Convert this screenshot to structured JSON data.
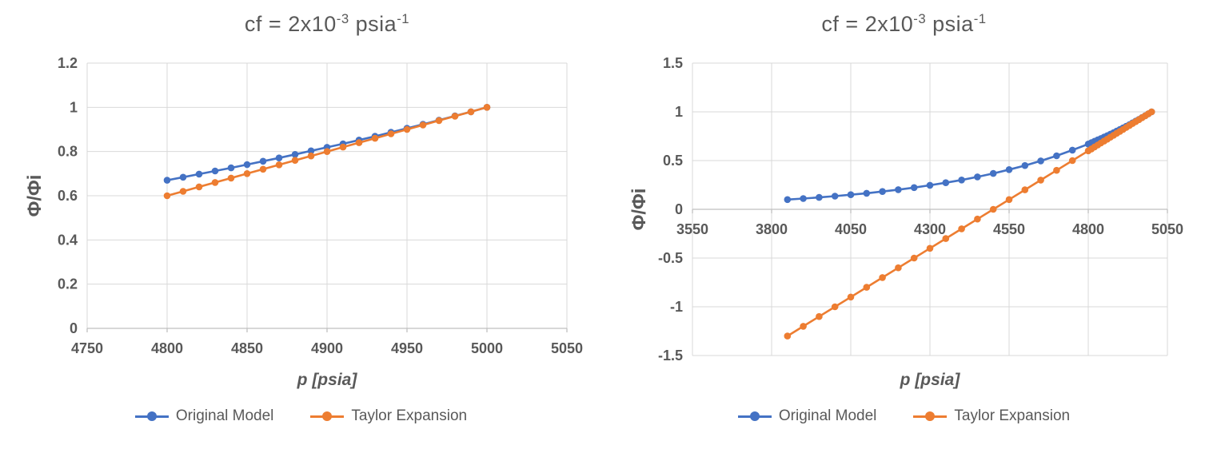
{
  "colors": {
    "accent_blue": "#4472C4",
    "accent_orange": "#ED7D31",
    "text": "#595959",
    "gridline": "#D9D9D9",
    "axis": "#BFBFBF",
    "background": "#FFFFFF"
  },
  "chart_data": [
    {
      "type": "line",
      "title": "cf = 2x10-3 psia-1",
      "title_parts": {
        "base1": "cf = 2x10",
        "sup1": "-3",
        "base2": " psia",
        "sup2": "-1"
      },
      "xlabel": "p [psia]",
      "ylabel": "Φ/Φi",
      "xlim": [
        4750,
        5050
      ],
      "ylim": [
        0,
        1.2
      ],
      "grid": true,
      "legend_position": "bottom",
      "xticks": [
        {
          "v": 4750,
          "label": "4750"
        },
        {
          "v": 4800,
          "label": "4800"
        },
        {
          "v": 4850,
          "label": "4850"
        },
        {
          "v": 4900,
          "label": "4900"
        },
        {
          "v": 4950,
          "label": "4950"
        },
        {
          "v": 5000,
          "label": "5000"
        },
        {
          "v": 5050,
          "label": "5050"
        }
      ],
      "yticks": [
        {
          "v": 0,
          "label": "0"
        },
        {
          "v": 0.2,
          "label": "0.2"
        },
        {
          "v": 0.4,
          "label": "0.4"
        },
        {
          "v": 0.6,
          "label": "0.6"
        },
        {
          "v": 0.8,
          "label": "0.8"
        },
        {
          "v": 1,
          "label": "1"
        },
        {
          "v": 1.2,
          "label": "1.2"
        }
      ],
      "series": [
        {
          "name": "Original Model",
          "color": "#4472C4",
          "points": [
            [
              4800,
              0.67
            ],
            [
              4810,
              0.684
            ],
            [
              4820,
              0.698
            ],
            [
              4830,
              0.712
            ],
            [
              4840,
              0.726
            ],
            [
              4850,
              0.741
            ],
            [
              4860,
              0.756
            ],
            [
              4870,
              0.771
            ],
            [
              4880,
              0.787
            ],
            [
              4890,
              0.803
            ],
            [
              4900,
              0.819
            ],
            [
              4910,
              0.835
            ],
            [
              4920,
              0.852
            ],
            [
              4930,
              0.869
            ],
            [
              4940,
              0.887
            ],
            [
              4950,
              0.905
            ],
            [
              4960,
              0.923
            ],
            [
              4970,
              0.942
            ],
            [
              4980,
              0.961
            ],
            [
              4990,
              0.98
            ],
            [
              5000,
              1.0
            ]
          ]
        },
        {
          "name": "Taylor Expansion",
          "color": "#ED7D31",
          "points": [
            [
              4800,
              0.6
            ],
            [
              4810,
              0.62
            ],
            [
              4820,
              0.64
            ],
            [
              4830,
              0.66
            ],
            [
              4840,
              0.68
            ],
            [
              4850,
              0.7
            ],
            [
              4860,
              0.72
            ],
            [
              4870,
              0.74
            ],
            [
              4880,
              0.76
            ],
            [
              4890,
              0.78
            ],
            [
              4900,
              0.8
            ],
            [
              4910,
              0.82
            ],
            [
              4920,
              0.84
            ],
            [
              4930,
              0.86
            ],
            [
              4940,
              0.88
            ],
            [
              4950,
              0.9
            ],
            [
              4960,
              0.92
            ],
            [
              4970,
              0.94
            ],
            [
              4980,
              0.96
            ],
            [
              4990,
              0.98
            ],
            [
              5000,
              1.0
            ]
          ]
        }
      ]
    },
    {
      "type": "line",
      "title": "cf = 2x10-3 psia-1",
      "title_parts": {
        "base1": "cf = 2x10",
        "sup1": "-3",
        "base2": " psia",
        "sup2": "-1"
      },
      "xlabel": "p [psia]",
      "ylabel": "Φ/Φi",
      "xlim": [
        3550,
        5050
      ],
      "ylim": [
        -1.5,
        1.5
      ],
      "grid": true,
      "legend_position": "bottom",
      "xticks": [
        {
          "v": 3550,
          "label": "3550"
        },
        {
          "v": 3800,
          "label": "3800"
        },
        {
          "v": 4050,
          "label": "4050"
        },
        {
          "v": 4300,
          "label": "4300"
        },
        {
          "v": 4550,
          "label": "4550"
        },
        {
          "v": 4800,
          "label": "4800"
        },
        {
          "v": 5050,
          "label": "5050"
        }
      ],
      "yticks": [
        {
          "v": -1.5,
          "label": "-1.5"
        },
        {
          "v": -1,
          "label": "-1"
        },
        {
          "v": -0.5,
          "label": "-0.5"
        },
        {
          "v": 0,
          "label": "0"
        },
        {
          "v": 0.5,
          "label": "0.5"
        },
        {
          "v": 1,
          "label": "1"
        },
        {
          "v": 1.5,
          "label": "1.5"
        }
      ],
      "series": [
        {
          "name": "Original Model",
          "color": "#4472C4",
          "points": [
            [
              3850,
              0.1
            ],
            [
              3900,
              0.111
            ],
            [
              3950,
              0.122
            ],
            [
              4000,
              0.135
            ],
            [
              4050,
              0.15
            ],
            [
              4100,
              0.165
            ],
            [
              4150,
              0.183
            ],
            [
              4200,
              0.202
            ],
            [
              4250,
              0.223
            ],
            [
              4300,
              0.247
            ],
            [
              4350,
              0.273
            ],
            [
              4400,
              0.301
            ],
            [
              4450,
              0.333
            ],
            [
              4500,
              0.368
            ],
            [
              4550,
              0.407
            ],
            [
              4600,
              0.449
            ],
            [
              4650,
              0.497
            ],
            [
              4700,
              0.549
            ],
            [
              4750,
              0.607
            ],
            [
              4800,
              0.67
            ],
            [
              4810,
              0.684
            ],
            [
              4820,
              0.698
            ],
            [
              4830,
              0.712
            ],
            [
              4840,
              0.726
            ],
            [
              4850,
              0.741
            ],
            [
              4860,
              0.756
            ],
            [
              4870,
              0.771
            ],
            [
              4880,
              0.787
            ],
            [
              4890,
              0.803
            ],
            [
              4900,
              0.819
            ],
            [
              4910,
              0.835
            ],
            [
              4920,
              0.852
            ],
            [
              4930,
              0.869
            ],
            [
              4940,
              0.887
            ],
            [
              4950,
              0.905
            ],
            [
              4960,
              0.923
            ],
            [
              4970,
              0.942
            ],
            [
              4980,
              0.961
            ],
            [
              4990,
              0.98
            ],
            [
              5000,
              1.0
            ]
          ]
        },
        {
          "name": "Taylor Expansion",
          "color": "#ED7D31",
          "points": [
            [
              3850,
              -1.3
            ],
            [
              3900,
              -1.2
            ],
            [
              3950,
              -1.1
            ],
            [
              4000,
              -1.0
            ],
            [
              4050,
              -0.9
            ],
            [
              4100,
              -0.8
            ],
            [
              4150,
              -0.7
            ],
            [
              4200,
              -0.6
            ],
            [
              4250,
              -0.5
            ],
            [
              4300,
              -0.4
            ],
            [
              4350,
              -0.3
            ],
            [
              4400,
              -0.2
            ],
            [
              4450,
              -0.1
            ],
            [
              4500,
              0.0
            ],
            [
              4550,
              0.1
            ],
            [
              4600,
              0.2
            ],
            [
              4650,
              0.3
            ],
            [
              4700,
              0.4
            ],
            [
              4750,
              0.5
            ],
            [
              4800,
              0.6
            ],
            [
              4810,
              0.62
            ],
            [
              4820,
              0.64
            ],
            [
              4830,
              0.66
            ],
            [
              4840,
              0.68
            ],
            [
              4850,
              0.7
            ],
            [
              4860,
              0.72
            ],
            [
              4870,
              0.74
            ],
            [
              4880,
              0.76
            ],
            [
              4890,
              0.78
            ],
            [
              4900,
              0.8
            ],
            [
              4910,
              0.82
            ],
            [
              4920,
              0.84
            ],
            [
              4930,
              0.86
            ],
            [
              4940,
              0.88
            ],
            [
              4950,
              0.9
            ],
            [
              4960,
              0.92
            ],
            [
              4970,
              0.94
            ],
            [
              4980,
              0.96
            ],
            [
              4990,
              0.98
            ],
            [
              5000,
              1.0
            ]
          ]
        }
      ]
    }
  ]
}
